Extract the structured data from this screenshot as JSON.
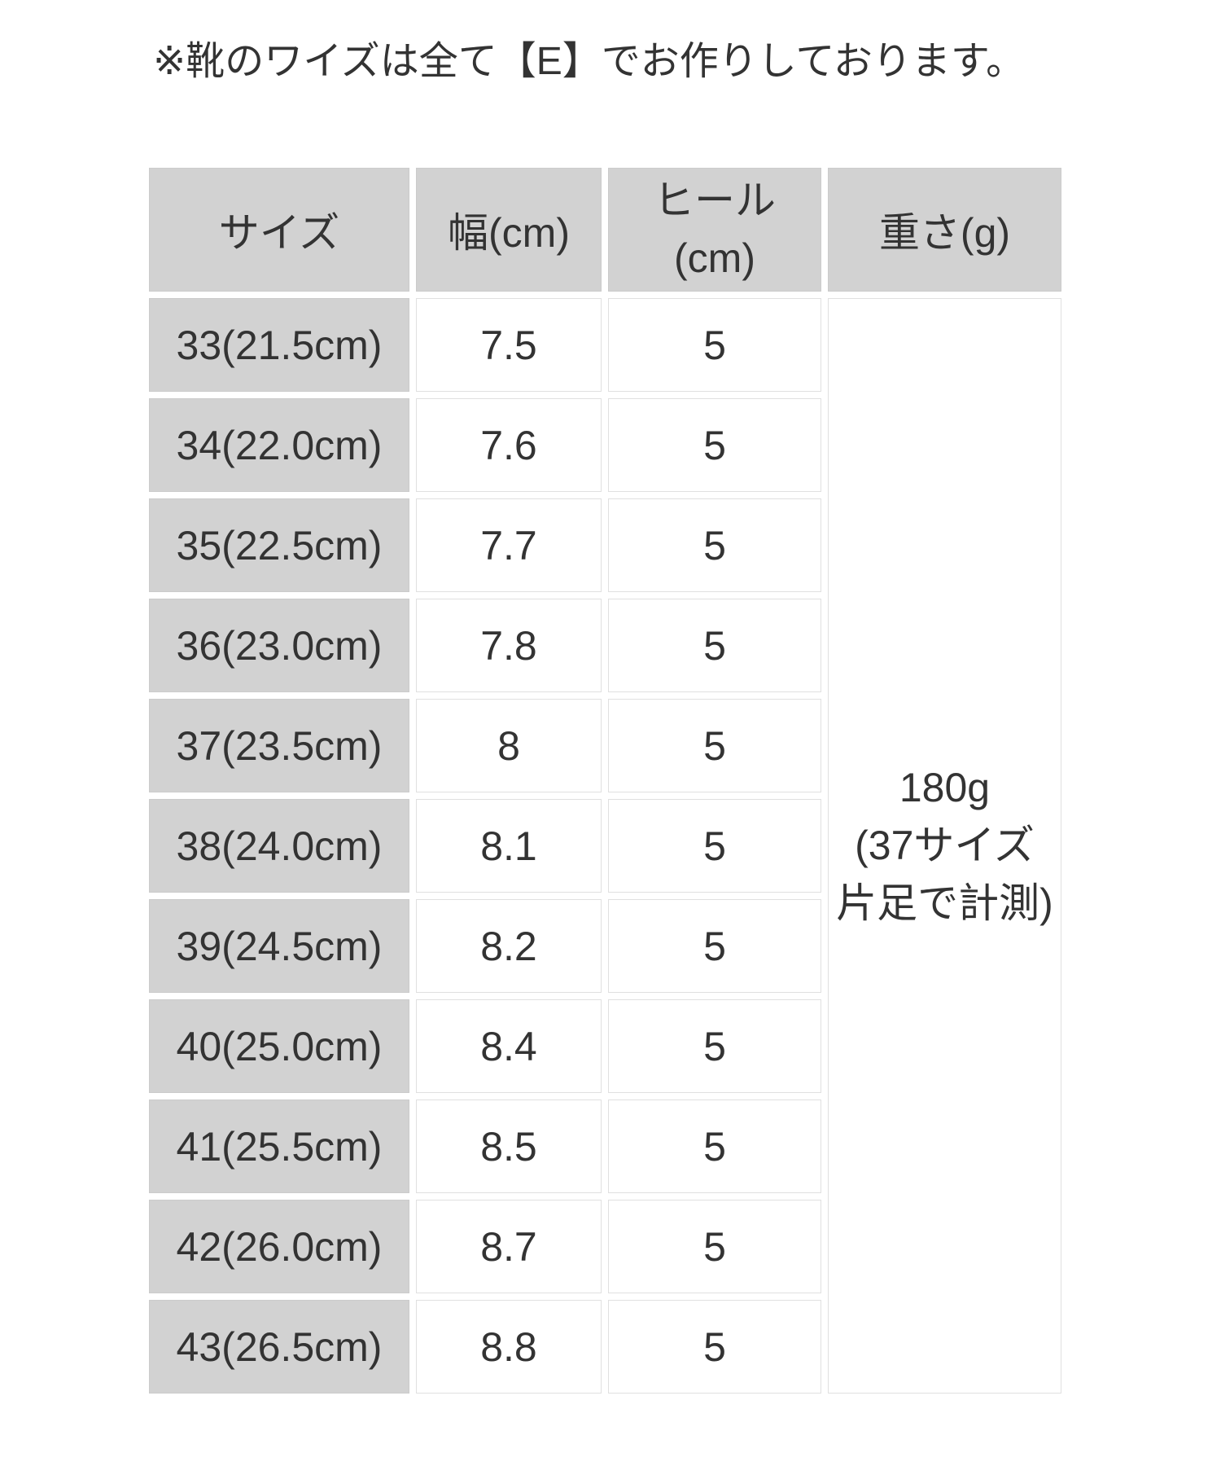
{
  "note": "※靴のワイズは全て【E】でお作りしております。",
  "chart_data": {
    "type": "table",
    "title": "※靴のワイズは全て【E】でお作りしております。",
    "columns": [
      {
        "key": "size",
        "label": "サイズ"
      },
      {
        "key": "width_cm",
        "label": "幅(cm)"
      },
      {
        "key": "heel_cm",
        "label": "ヒール(cm)",
        "label_line1": "ヒール",
        "label_line2": "(cm)"
      },
      {
        "key": "weight_g",
        "label": "重さ(g)"
      }
    ],
    "rows": [
      {
        "size": "33(21.5cm)",
        "width_cm": 7.5,
        "heel_cm": 5
      },
      {
        "size": "34(22.0cm)",
        "width_cm": 7.6,
        "heel_cm": 5
      },
      {
        "size": "35(22.5cm)",
        "width_cm": 7.7,
        "heel_cm": 5
      },
      {
        "size": "36(23.0cm)",
        "width_cm": 7.8,
        "heel_cm": 5
      },
      {
        "size": "37(23.5cm)",
        "width_cm": 8,
        "heel_cm": 5
      },
      {
        "size": "38(24.0cm)",
        "width_cm": 8.1,
        "heel_cm": 5
      },
      {
        "size": "39(24.5cm)",
        "width_cm": 8.2,
        "heel_cm": 5
      },
      {
        "size": "40(25.0cm)",
        "width_cm": 8.4,
        "heel_cm": 5
      },
      {
        "size": "41(25.5cm)",
        "width_cm": 8.5,
        "heel_cm": 5
      },
      {
        "size": "42(26.0cm)",
        "width_cm": 8.7,
        "heel_cm": 5
      },
      {
        "size": "43(26.5cm)",
        "width_cm": 8.8,
        "heel_cm": 5
      }
    ],
    "merged_weight_cell": {
      "value": "180g(37サイズ片足で計測)",
      "lines": [
        "180g",
        "(37サイズ",
        "片足で計測)"
      ]
    }
  },
  "colors": {
    "page_bg": "#ffffff",
    "gray_cell_bg": "#d2d2d2",
    "gray_cell_border": "#cbcbcb",
    "white_cell_border": "#e0e0e0",
    "text": "#333333"
  }
}
